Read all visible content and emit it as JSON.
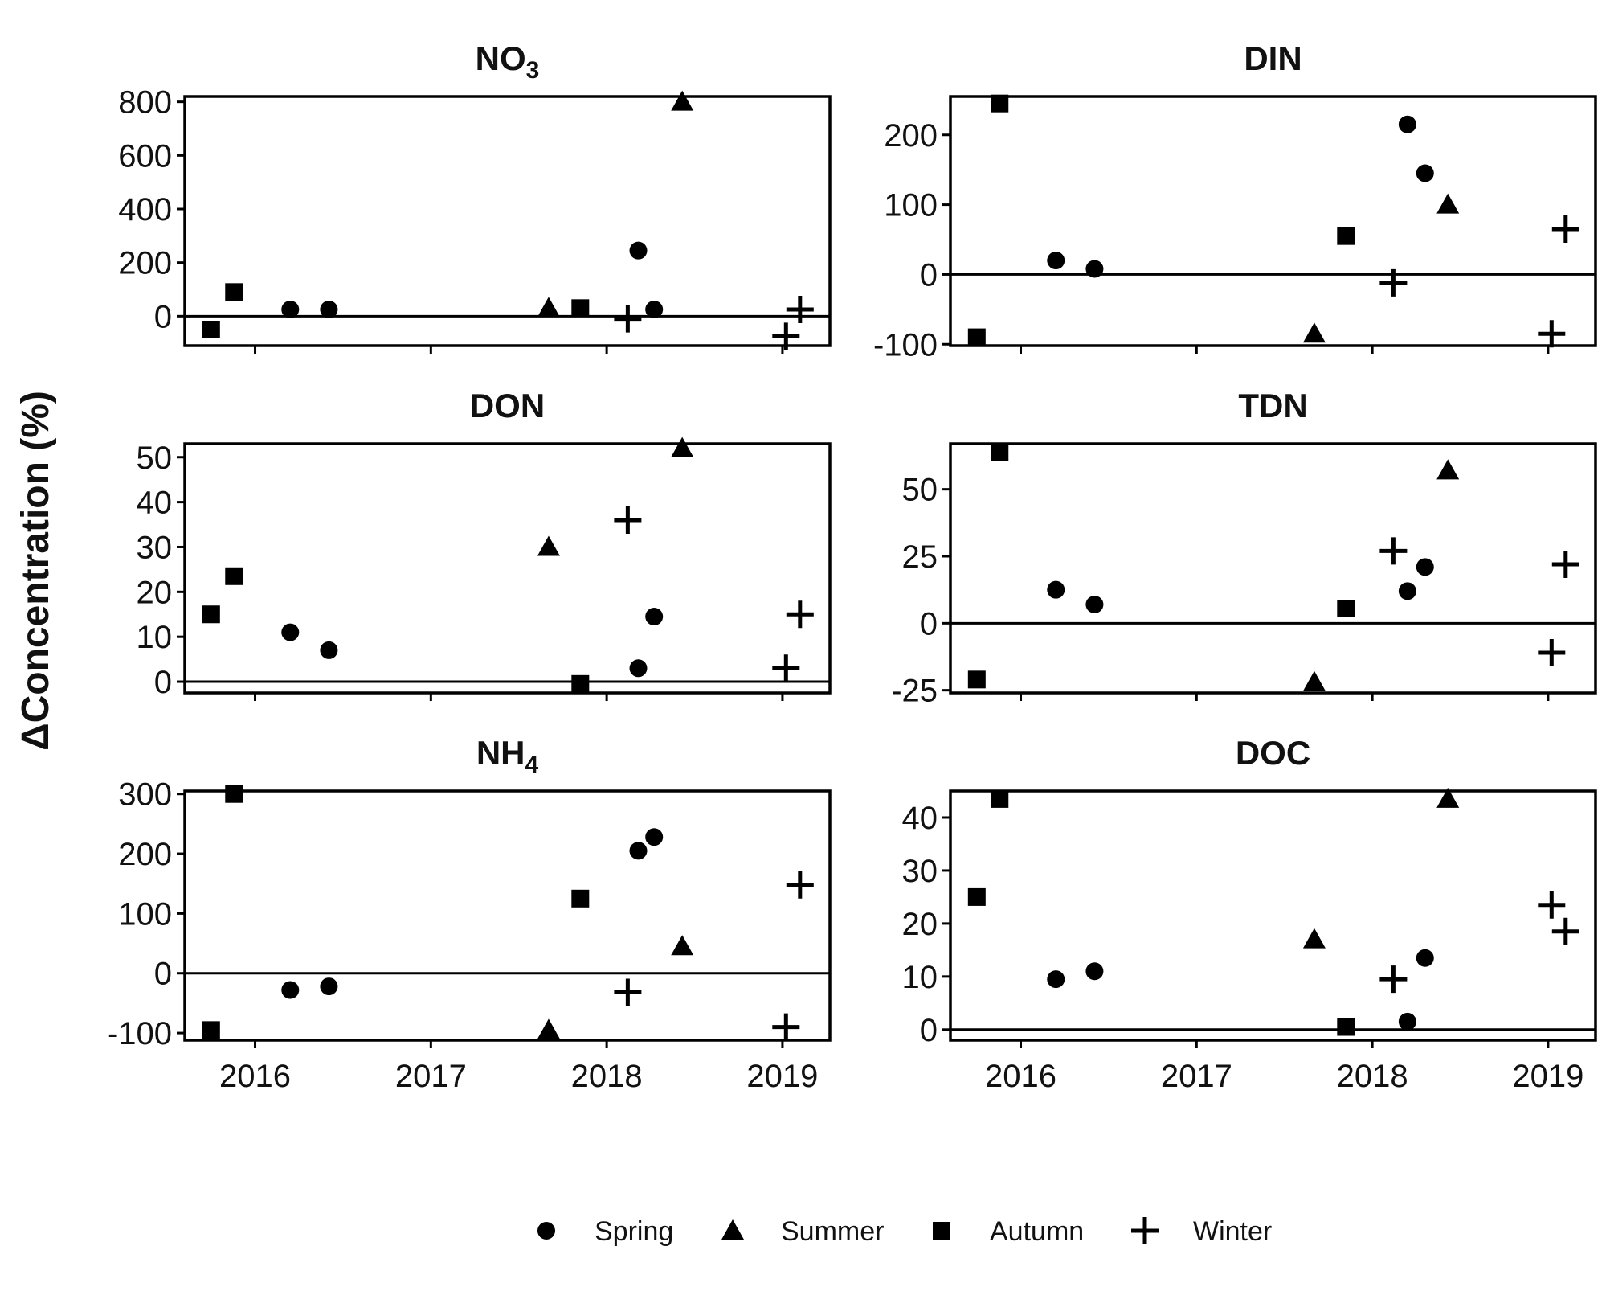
{
  "figure": {
    "y_axis_title": "ΔConcentration (%)"
  },
  "legend": {
    "items": [
      {
        "label": "Spring",
        "shape": "circle"
      },
      {
        "label": "Summer",
        "shape": "triangle"
      },
      {
        "label": "Autumn",
        "shape": "square"
      },
      {
        "label": "Winter",
        "shape": "plus"
      }
    ]
  },
  "chart_data": [
    {
      "type": "scatter",
      "title": "NO3",
      "title_main": "NO",
      "title_sub": "3",
      "xlim": [
        2015.6,
        2019.27
      ],
      "ylim": [
        -110,
        820
      ],
      "x_ticks": [
        2016,
        2017,
        2018,
        2019
      ],
      "y_ticks": [
        0,
        200,
        400,
        600,
        800
      ],
      "reference_line": 0,
      "show_x_tick_labels": false,
      "series": [
        {
          "name": "Spring",
          "points": [
            [
              2016.2,
              25
            ],
            [
              2016.42,
              25
            ],
            [
              2018.18,
              245
            ],
            [
              2018.27,
              25
            ]
          ]
        },
        {
          "name": "Summer",
          "points": [
            [
              2017.67,
              30
            ],
            [
              2018.43,
              800
            ]
          ]
        },
        {
          "name": "Autumn",
          "points": [
            [
              2015.75,
              -50
            ],
            [
              2015.88,
              90
            ],
            [
              2017.85,
              30
            ]
          ]
        },
        {
          "name": "Winter",
          "points": [
            [
              2018.12,
              -10
            ],
            [
              2019.02,
              -75
            ],
            [
              2019.1,
              25
            ]
          ]
        }
      ]
    },
    {
      "type": "scatter",
      "title": "DIN",
      "title_main": "DIN",
      "title_sub": "",
      "xlim": [
        2015.6,
        2019.27
      ],
      "ylim": [
        -102,
        255
      ],
      "x_ticks": [
        2016,
        2017,
        2018,
        2019
      ],
      "y_ticks": [
        -100,
        0,
        100,
        200
      ],
      "reference_line": 0,
      "show_x_tick_labels": false,
      "series": [
        {
          "name": "Spring",
          "points": [
            [
              2016.2,
              20
            ],
            [
              2016.42,
              8
            ],
            [
              2018.2,
              215
            ],
            [
              2018.3,
              145
            ]
          ]
        },
        {
          "name": "Summer",
          "points": [
            [
              2017.67,
              -85
            ],
            [
              2018.43,
              100
            ]
          ]
        },
        {
          "name": "Autumn",
          "points": [
            [
              2015.75,
              -90
            ],
            [
              2015.88,
              245
            ],
            [
              2017.85,
              55
            ]
          ]
        },
        {
          "name": "Winter",
          "points": [
            [
              2018.12,
              -12
            ],
            [
              2019.02,
              -85
            ],
            [
              2019.1,
              65
            ]
          ]
        }
      ]
    },
    {
      "type": "scatter",
      "title": "DON",
      "title_main": "DON",
      "title_sub": "",
      "xlim": [
        2015.6,
        2019.27
      ],
      "ylim": [
        -2.5,
        53
      ],
      "x_ticks": [
        2016,
        2017,
        2018,
        2019
      ],
      "y_ticks": [
        0,
        10,
        20,
        30,
        40,
        50
      ],
      "reference_line": 0,
      "show_x_tick_labels": false,
      "series": [
        {
          "name": "Spring",
          "points": [
            [
              2016.2,
              11
            ],
            [
              2016.42,
              7
            ],
            [
              2018.18,
              3
            ],
            [
              2018.27,
              14.5
            ]
          ]
        },
        {
          "name": "Summer",
          "points": [
            [
              2017.67,
              30
            ],
            [
              2018.43,
              52
            ]
          ]
        },
        {
          "name": "Autumn",
          "points": [
            [
              2015.75,
              15
            ],
            [
              2015.88,
              23.5
            ],
            [
              2017.85,
              -0.5
            ]
          ]
        },
        {
          "name": "Winter",
          "points": [
            [
              2018.12,
              36
            ],
            [
              2019.02,
              3
            ],
            [
              2019.1,
              15
            ]
          ]
        }
      ]
    },
    {
      "type": "scatter",
      "title": "TDN",
      "title_main": "TDN",
      "title_sub": "",
      "xlim": [
        2015.6,
        2019.27
      ],
      "ylim": [
        -26,
        67
      ],
      "x_ticks": [
        2016,
        2017,
        2018,
        2019
      ],
      "y_ticks": [
        -25,
        0,
        25,
        50
      ],
      "reference_line": 0,
      "show_x_tick_labels": false,
      "series": [
        {
          "name": "Spring",
          "points": [
            [
              2016.2,
              12.5
            ],
            [
              2016.42,
              7
            ],
            [
              2018.2,
              12
            ],
            [
              2018.3,
              21
            ]
          ]
        },
        {
          "name": "Summer",
          "points": [
            [
              2017.67,
              -22
            ],
            [
              2018.43,
              57
            ]
          ]
        },
        {
          "name": "Autumn",
          "points": [
            [
              2015.75,
              -21
            ],
            [
              2015.88,
              64
            ],
            [
              2017.85,
              5.5
            ]
          ]
        },
        {
          "name": "Winter",
          "points": [
            [
              2018.12,
              27
            ],
            [
              2019.02,
              -11
            ],
            [
              2019.1,
              22
            ]
          ]
        }
      ]
    },
    {
      "type": "scatter",
      "title": "NH4",
      "title_main": "NH",
      "title_sub": "4",
      "xlim": [
        2015.6,
        2019.27
      ],
      "ylim": [
        -112,
        305
      ],
      "x_ticks": [
        2016,
        2017,
        2018,
        2019
      ],
      "y_ticks": [
        -100,
        0,
        100,
        200,
        300
      ],
      "reference_line": 0,
      "show_x_tick_labels": true,
      "series": [
        {
          "name": "Spring",
          "points": [
            [
              2016.2,
              -28
            ],
            [
              2016.42,
              -22
            ],
            [
              2018.18,
              205
            ],
            [
              2018.27,
              228
            ]
          ]
        },
        {
          "name": "Summer",
          "points": [
            [
              2017.67,
              -95
            ],
            [
              2018.43,
              45
            ]
          ]
        },
        {
          "name": "Autumn",
          "points": [
            [
              2015.75,
              -95
            ],
            [
              2015.88,
              300
            ],
            [
              2017.85,
              125
            ]
          ]
        },
        {
          "name": "Winter",
          "points": [
            [
              2018.12,
              -32
            ],
            [
              2019.02,
              -90
            ],
            [
              2019.1,
              148
            ]
          ]
        }
      ]
    },
    {
      "type": "scatter",
      "title": "DOC",
      "title_main": "DOC",
      "title_sub": "",
      "xlim": [
        2015.6,
        2019.27
      ],
      "ylim": [
        -2,
        45
      ],
      "x_ticks": [
        2016,
        2017,
        2018,
        2019
      ],
      "y_ticks": [
        0,
        10,
        20,
        30,
        40
      ],
      "reference_line": 0,
      "show_x_tick_labels": true,
      "series": [
        {
          "name": "Spring",
          "points": [
            [
              2016.2,
              9.5
            ],
            [
              2016.42,
              11
            ],
            [
              2018.2,
              1.5
            ],
            [
              2018.3,
              13.5
            ]
          ]
        },
        {
          "name": "Summer",
          "points": [
            [
              2017.67,
              17
            ],
            [
              2018.43,
              43.5
            ]
          ]
        },
        {
          "name": "Autumn",
          "points": [
            [
              2015.75,
              25
            ],
            [
              2015.88,
              43.5
            ],
            [
              2017.85,
              0.5
            ]
          ]
        },
        {
          "name": "Winter",
          "points": [
            [
              2018.12,
              9.5
            ],
            [
              2019.02,
              23.5
            ],
            [
              2019.1,
              18.5
            ]
          ]
        }
      ]
    }
  ]
}
